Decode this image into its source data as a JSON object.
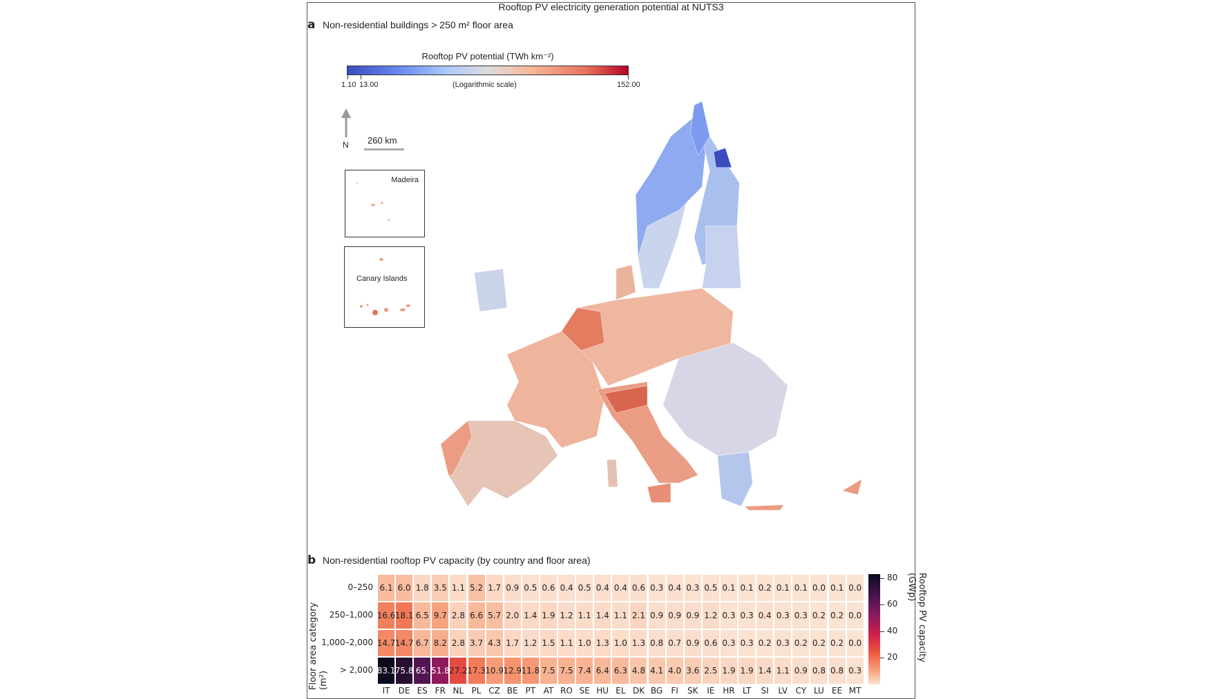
{
  "figure_title": "Rooftop PV electricity generation potential at NUTS3",
  "panel_a": {
    "letter": "a",
    "title": "Non-residential buildings > 250 m² floor area",
    "colorbar": {
      "title": "Rooftop PV potential (TWh km⁻²)",
      "tick_labels": [
        "1.10",
        "13.00",
        "152.00"
      ],
      "scale_note": "(Logarithmic scale)",
      "min": 1.1,
      "max": 152.0,
      "scale": "log",
      "colors": [
        "#3b4cc0",
        "#dddcdc",
        "#b40426"
      ]
    },
    "north_label": "N",
    "scale_bar_label": "260 km",
    "insets": [
      "Madeira",
      "Canary Islands"
    ]
  },
  "chart_data": {
    "type": "heatmap",
    "letter": "b",
    "title": "Non-residential rooftop PV capacity (by country and floor area)",
    "ylabel": "Floor area category (m²)",
    "colorbar_label": "Rooftop PV capacity (GWp)",
    "colorbar_ticks": [
      "20",
      "40",
      "60",
      "80"
    ],
    "colorbar_range": [
      0,
      83
    ],
    "categories": [
      "IT",
      "DE",
      "ES",
      "FR",
      "NL",
      "PL",
      "CZ",
      "BE",
      "PT",
      "AT",
      "RO",
      "SE",
      "HU",
      "EL",
      "DK",
      "BG",
      "FI",
      "SK",
      "IE",
      "HR",
      "LT",
      "SI",
      "LV",
      "CY",
      "LU",
      "EE",
      "MT"
    ],
    "rows": [
      "0–250",
      "250–1,000",
      "1,000–2,000",
      "> 2,000"
    ],
    "values": [
      [
        6.1,
        6.0,
        1.8,
        3.5,
        1.1,
        5.2,
        1.7,
        0.9,
        0.5,
        0.6,
        0.4,
        0.5,
        0.4,
        0.4,
        0.6,
        0.3,
        0.4,
        0.3,
        0.5,
        0.1,
        0.1,
        0.2,
        0.1,
        0.1,
        0.0,
        0.1,
        0.0
      ],
      [
        16.6,
        18.1,
        6.5,
        9.7,
        2.8,
        6.6,
        5.7,
        2.0,
        1.4,
        1.9,
        1.2,
        1.1,
        1.4,
        1.1,
        2.1,
        0.9,
        0.9,
        0.9,
        1.2,
        0.3,
        0.3,
        0.4,
        0.3,
        0.3,
        0.2,
        0.2,
        0.0
      ],
      [
        14.7,
        14.7,
        6.7,
        8.2,
        2.8,
        3.7,
        4.3,
        1.7,
        1.2,
        1.5,
        1.1,
        1.0,
        1.3,
        1.0,
        1.3,
        0.8,
        0.7,
        0.9,
        0.6,
        0.3,
        0.3,
        0.2,
        0.3,
        0.2,
        0.2,
        0.2,
        0.0
      ],
      [
        83.1,
        75.8,
        65.0,
        51.8,
        27.2,
        17.3,
        10.9,
        12.9,
        11.8,
        7.5,
        7.5,
        7.4,
        6.4,
        6.3,
        4.8,
        4.1,
        4.0,
        3.6,
        2.5,
        1.9,
        1.9,
        1.4,
        1.1,
        0.9,
        0.8,
        0.8,
        0.3
      ]
    ],
    "printed_labels": {
      "3,2": "65."
    }
  }
}
